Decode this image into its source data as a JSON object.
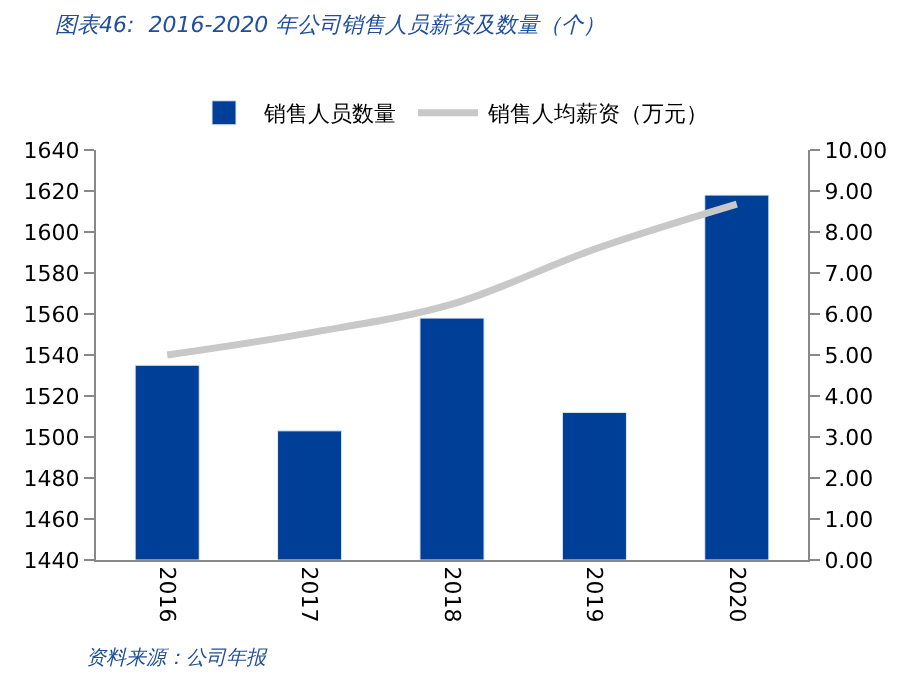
{
  "chart_data": {
    "type": "bar",
    "title": "图表46:  2016-2020 年公司销售人员薪资及数量（个）",
    "categories": [
      "2016",
      "2017",
      "2018",
      "2019",
      "2020"
    ],
    "series": [
      {
        "name": "销售人员数量",
        "color": "#003f98",
        "values": [
          1535,
          1503,
          1558,
          1512,
          1618
        ]
      },
      {
        "name": "销售人均薪资（万元）",
        "color": "#c8c8c8",
        "type": "line",
        "axis": "y2",
        "values": [
          5.0,
          5.54,
          6.24,
          7.58,
          8.68
        ]
      }
    ],
    "ylim": [
      1440,
      1640
    ],
    "yticks": [
      1440,
      1460,
      1480,
      1500,
      1520,
      1540,
      1560,
      1580,
      1600,
      1620,
      1640
    ],
    "y2lim": [
      0,
      10
    ],
    "y2ticks": [
      {
        "value": 0,
        "label": "0.00"
      },
      {
        "value": 1,
        "label": "1.00"
      },
      {
        "value": 2,
        "label": "2.00"
      },
      {
        "value": 3,
        "label": "3.00"
      },
      {
        "value": 4,
        "label": "4.00"
      },
      {
        "value": 5,
        "label": "5.00"
      },
      {
        "value": 6,
        "label": "6.00"
      },
      {
        "value": 7,
        "label": "7.00"
      },
      {
        "value": 8,
        "label": "8.00"
      },
      {
        "value": 9,
        "label": "9.00"
      },
      {
        "value": 10,
        "label": "10.00"
      }
    ],
    "legend": "top",
    "annotations": [
      "资料来源：公司年报"
    ]
  }
}
